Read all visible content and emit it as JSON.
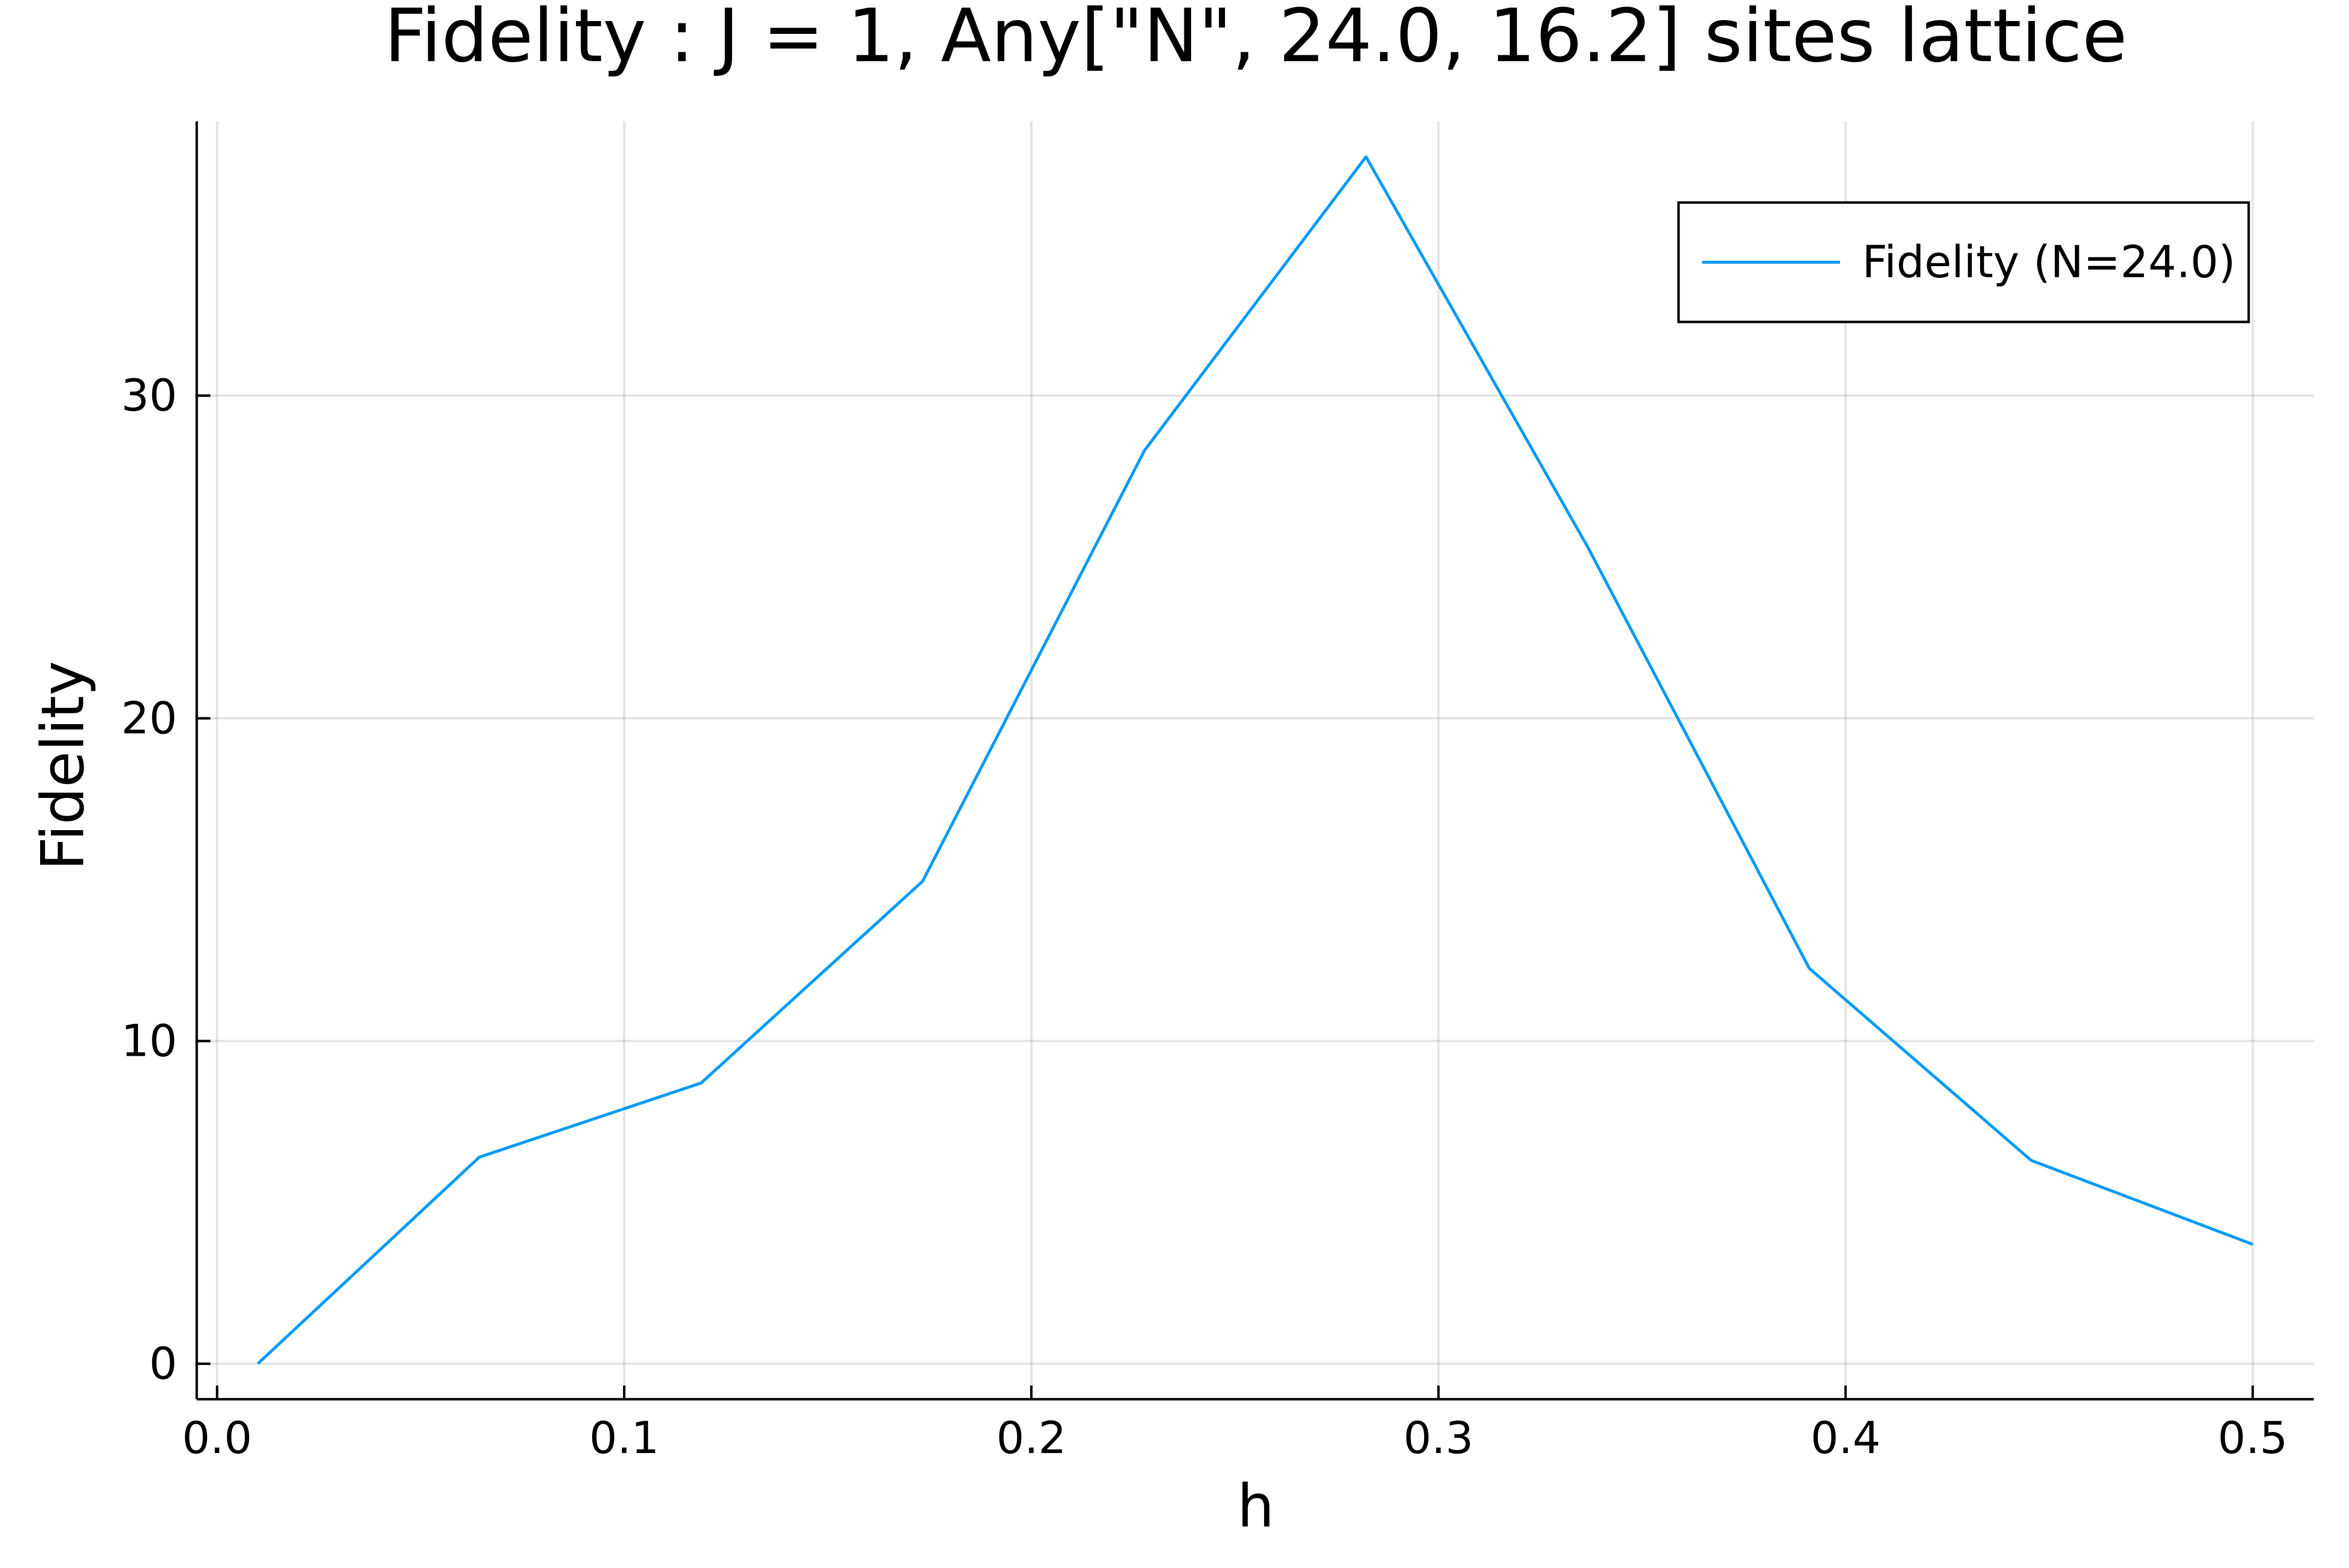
{
  "chart_data": {
    "type": "line",
    "title": "Fidelity : J = 1, Any[\"N\", 24.0, 16.2] sites lattice",
    "xlabel": "h",
    "ylabel": "Fidelity",
    "xlim": [
      -0.005,
      0.515
    ],
    "ylim": [
      -1.1,
      38.5
    ],
    "xticks": [
      0.0,
      0.1,
      0.2,
      0.3,
      0.4,
      0.5
    ],
    "xtick_labels": [
      "0.0",
      "0.1",
      "0.2",
      "0.3",
      "0.4",
      "0.5"
    ],
    "yticks": [
      0,
      10,
      20,
      30
    ],
    "ytick_labels": [
      "0",
      "10",
      "20",
      "30"
    ],
    "grid": true,
    "legend_position": "top-right",
    "series": [
      {
        "name": "Fidelity (N=24.0)",
        "color": "#009af9",
        "x": [
          0.01,
          0.0644,
          0.1189,
          0.1733,
          0.2278,
          0.2822,
          0.3367,
          0.3911,
          0.4456,
          0.5
        ],
        "y": [
          0.0,
          6.4,
          8.7,
          14.95,
          28.3,
          37.4,
          25.3,
          12.25,
          6.3,
          3.7
        ]
      }
    ]
  }
}
